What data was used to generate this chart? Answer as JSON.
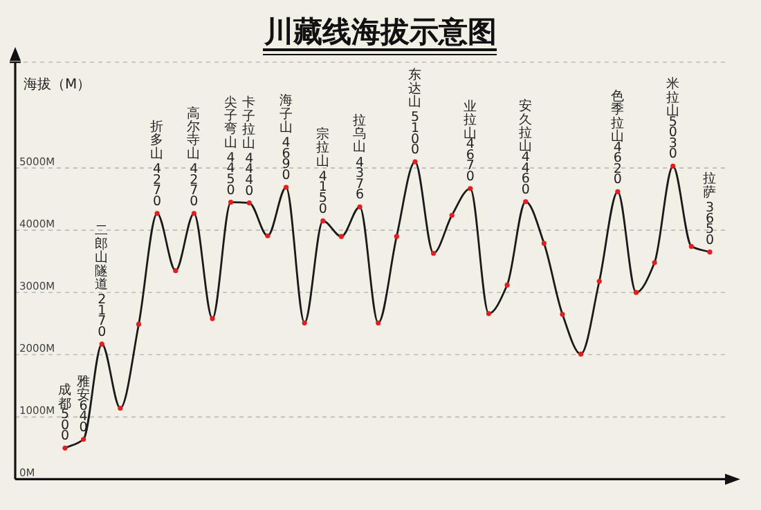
{
  "chart_data": {
    "type": "line",
    "title": "川藏线海拔示意图",
    "ylabel": "海拔（M）",
    "categories": [
      null,
      null,
      null,
      null,
      null,
      null,
      null,
      null,
      null,
      null,
      null,
      null,
      null,
      null,
      null,
      null,
      null,
      null,
      null,
      null,
      null,
      null,
      null,
      null,
      null,
      null,
      null,
      null,
      null,
      null,
      null,
      null,
      null,
      null,
      null,
      null
    ],
    "series": [
      {
        "color": "#1a1a1a",
        "values": [
          500,
          640,
          2170,
          1140,
          2490,
          4270,
          3350,
          4270,
          2580,
          4450,
          4440,
          3910,
          4690,
          2510,
          4150,
          3900,
          4376,
          2510,
          3900,
          5100,
          3630,
          4240,
          4670,
          2660,
          3120,
          4460,
          3790,
          2650,
          2010,
          3180,
          4620,
          3000,
          3480,
          5030,
          3740,
          3650
        ],
        "value_labels": [
          "成都500",
          "雅安640",
          "二郎山隧道 2170",
          null,
          null,
          "折多山 4270",
          null,
          "高尔寺山 4270",
          null,
          "尖子弯山 4450",
          "卡子拉山 4440",
          null,
          "海子山 4690",
          null,
          "宗拉山 4150",
          null,
          "拉乌山 4376",
          null,
          null,
          "东达山 5100",
          null,
          null,
          "业拉山4670",
          null,
          null,
          "安久拉山4460",
          null,
          null,
          null,
          null,
          "色季拉山4620",
          null,
          null,
          "米拉山5030",
          null,
          "拉萨 3650"
        ]
      }
    ],
    "ylim": [
      0,
      6700
    ],
    "yticks": [
      {
        "value": 0,
        "label": "0M"
      },
      {
        "value": 1000,
        "label": "1000M"
      },
      {
        "value": 2000,
        "label": "2000M"
      },
      {
        "value": 3000,
        "label": "3000M"
      },
      {
        "value": 4000,
        "label": "4000M"
      },
      {
        "value": 5000,
        "label": "5000M"
      },
      {
        "value": 6700,
        "label": null
      }
    ],
    "grid": "y",
    "marker": "circle",
    "line_style": "solid",
    "tick_labels": "y"
  }
}
